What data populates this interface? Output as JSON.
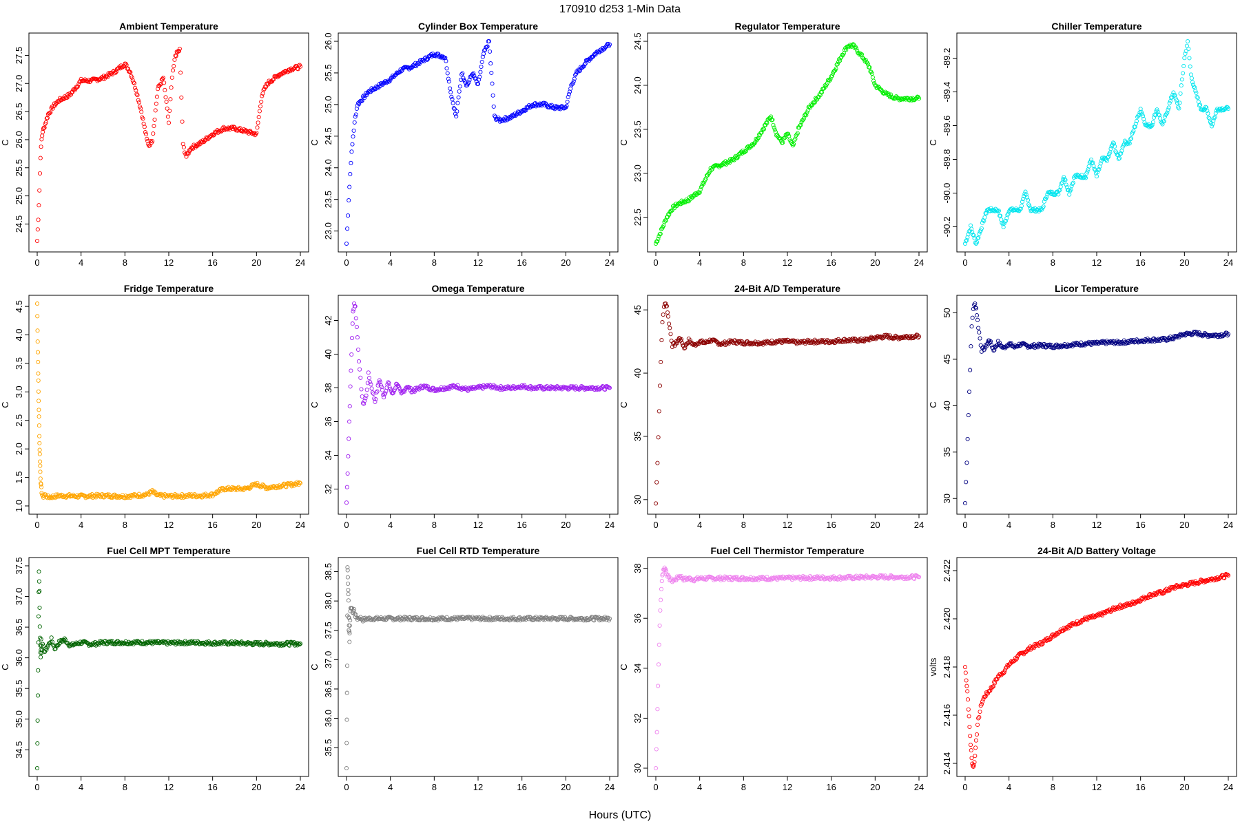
{
  "page_title": "170910    d253    1-Min Data",
  "common_xlabel": "Hours (UTC)",
  "chart_data": [
    {
      "type": "scatter",
      "title": "Ambient Temperature",
      "ylabel": "C",
      "xlabel": "",
      "color": "#ff0000",
      "xlim": [
        0,
        24
      ],
      "ylim": [
        24.15,
        27.75
      ],
      "xticks": [
        0,
        4,
        8,
        12,
        16,
        20,
        24
      ],
      "yticks": [
        24.5,
        25.0,
        25.5,
        26.0,
        26.5,
        27.0,
        27.5
      ],
      "ytick_labels": [
        "24.5",
        "25.0",
        "25.5",
        "26.0",
        "26.5",
        "27.0",
        "27.5"
      ],
      "x": [
        0,
        0.1,
        0.2,
        0.3,
        0.4,
        0.5,
        0.6,
        1,
        1.5,
        2,
        3,
        4,
        5,
        6,
        7,
        8,
        8.5,
        9,
        9.5,
        10,
        10.2,
        10.5,
        11,
        11.5,
        12,
        12.3,
        12.6,
        13,
        13.3,
        13.6,
        14,
        15,
        16,
        17,
        18,
        19,
        20,
        20.5,
        21,
        22,
        23,
        24
      ],
      "y": [
        24.2,
        24.6,
        25.1,
        25.7,
        26.0,
        26.15,
        26.2,
        26.45,
        26.6,
        26.7,
        26.8,
        27.05,
        27.05,
        27.1,
        27.2,
        27.35,
        27.2,
        26.9,
        26.5,
        26.0,
        25.9,
        26.0,
        26.9,
        27.1,
        26.3,
        27.1,
        27.5,
        27.6,
        25.9,
        25.7,
        25.85,
        25.95,
        26.1,
        26.2,
        26.2,
        26.15,
        26.1,
        26.8,
        27.0,
        27.15,
        27.25,
        27.3
      ]
    },
    {
      "type": "scatter",
      "title": "Cylinder Box Temperature",
      "ylabel": "C",
      "xlabel": "",
      "color": "#0000ff",
      "xlim": [
        0,
        24
      ],
      "ylim": [
        22.8,
        26.0
      ],
      "xticks": [
        0,
        4,
        8,
        12,
        16,
        20,
        24
      ],
      "yticks": [
        23.0,
        23.5,
        24.0,
        24.5,
        25.0,
        25.5,
        26.0
      ],
      "ytick_labels": [
        "23.0",
        "23.5",
        "24.0",
        "24.5",
        "25.0",
        "25.5",
        "26.0"
      ],
      "x": [
        0,
        0.2,
        0.4,
        0.6,
        0.8,
        1,
        1.5,
        2,
        3,
        4,
        5,
        6,
        7,
        8,
        9,
        9.5,
        10,
        10.5,
        11,
        11.5,
        12,
        12.5,
        13,
        13.5,
        14,
        15,
        16,
        17,
        18,
        19,
        20,
        20.5,
        21,
        22,
        23,
        24
      ],
      "y": [
        22.8,
        23.5,
        24.1,
        24.5,
        24.8,
        25.0,
        25.1,
        25.2,
        25.3,
        25.4,
        25.55,
        25.6,
        25.7,
        25.8,
        25.75,
        25.2,
        24.8,
        25.5,
        25.3,
        25.5,
        25.3,
        25.8,
        26.0,
        24.8,
        24.75,
        24.8,
        24.9,
        25.0,
        25.0,
        24.95,
        24.95,
        25.3,
        25.5,
        25.7,
        25.85,
        25.95
      ]
    },
    {
      "type": "scatter",
      "title": "Regulator Temperature",
      "ylabel": "C",
      "xlabel": "",
      "color": "#00ee00",
      "xlim": [
        0,
        24
      ],
      "ylim": [
        22.2,
        24.5
      ],
      "xticks": [
        0,
        4,
        8,
        12,
        16,
        20,
        24
      ],
      "yticks": [
        22.5,
        23.0,
        23.5,
        24.0,
        24.5
      ],
      "ytick_labels": [
        "22.5",
        "23.0",
        "23.5",
        "24.0",
        "24.5"
      ],
      "x": [
        0,
        0.5,
        1,
        1.5,
        2,
        3,
        4,
        5,
        6,
        7,
        8,
        9,
        10,
        10.5,
        11,
        11.5,
        12,
        12.5,
        13,
        14,
        15,
        16,
        17,
        17.5,
        18,
        19,
        19.5,
        20,
        21,
        22,
        23,
        24
      ],
      "y": [
        22.2,
        22.35,
        22.5,
        22.6,
        22.65,
        22.7,
        22.8,
        23.05,
        23.1,
        23.15,
        23.25,
        23.35,
        23.55,
        23.65,
        23.45,
        23.35,
        23.45,
        23.3,
        23.5,
        23.75,
        23.9,
        24.1,
        24.35,
        24.45,
        24.45,
        24.3,
        24.2,
        24.0,
        23.9,
        23.85,
        23.85,
        23.85
      ]
    },
    {
      "type": "scatter",
      "title": "Chiller Temperature",
      "ylabel": "C",
      "xlabel": "",
      "color": "#00e5ee",
      "xlim": [
        0,
        24
      ],
      "ylim": [
        -90.3,
        -89.1
      ],
      "xticks": [
        0,
        4,
        8,
        12,
        16,
        20,
        24
      ],
      "yticks": [
        -90.2,
        -90.0,
        -89.8,
        -89.6,
        -89.4,
        -89.2
      ],
      "ytick_labels": [
        "-90.2",
        "-90.0",
        "-89.8",
        "-89.6",
        "-89.4",
        "-89.2"
      ],
      "x": [
        0,
        0.5,
        1,
        1.5,
        2,
        2.5,
        3,
        3.5,
        4,
        4.5,
        5,
        5.5,
        6,
        6.5,
        7,
        7.5,
        8,
        8.5,
        9,
        9.5,
        10,
        10.5,
        11,
        11.5,
        12,
        12.5,
        13,
        13.5,
        14,
        14.5,
        15,
        15.5,
        16,
        16.5,
        17,
        17.5,
        18,
        18.5,
        19,
        19.5,
        20,
        20.3,
        20.6,
        21,
        21.5,
        22,
        22.5,
        23,
        23.5,
        24
      ],
      "y": [
        -90.3,
        -90.2,
        -90.3,
        -90.2,
        -90.1,
        -90.1,
        -90.1,
        -90.2,
        -90.1,
        -90.1,
        -90.1,
        -90.0,
        -90.1,
        -90.1,
        -90.1,
        -90.0,
        -90.0,
        -90.0,
        -89.9,
        -90.0,
        -89.9,
        -89.9,
        -89.9,
        -89.8,
        -89.9,
        -89.8,
        -89.8,
        -89.7,
        -89.8,
        -89.7,
        -89.7,
        -89.6,
        -89.5,
        -89.6,
        -89.6,
        -89.5,
        -89.6,
        -89.5,
        -89.4,
        -89.5,
        -89.2,
        -89.1,
        -89.3,
        -89.4,
        -89.5,
        -89.5,
        -89.6,
        -89.5,
        -89.5,
        -89.5
      ]
    },
    {
      "type": "scatter",
      "title": "Fridge Temperature",
      "ylabel": "C",
      "xlabel": "",
      "color": "#ffa500",
      "xlim": [
        0,
        24
      ],
      "ylim": [
        1.0,
        4.55
      ],
      "xticks": [
        0,
        4,
        8,
        12,
        16,
        20,
        24
      ],
      "yticks": [
        1.0,
        1.5,
        2.0,
        2.5,
        3.0,
        3.5,
        4.0,
        4.5
      ],
      "ytick_labels": [
        "1.0",
        "1.5",
        "2.0",
        "2.5",
        "3.0",
        "3.5",
        "4.0",
        "4.5"
      ],
      "x": [
        0,
        0.03,
        0.06,
        0.09,
        0.12,
        0.15,
        0.18,
        0.21,
        0.24,
        0.27,
        0.3,
        0.35,
        0.4,
        0.5,
        0.7,
        1,
        2,
        4,
        6,
        8,
        9,
        10,
        10.5,
        11,
        12,
        14,
        15,
        16,
        17,
        18,
        19,
        20,
        21,
        22,
        23,
        24
      ],
      "y": [
        4.55,
        4.1,
        3.7,
        3.35,
        3.0,
        2.7,
        2.4,
        2.1,
        1.9,
        1.7,
        1.5,
        1.35,
        1.25,
        1.15,
        1.2,
        1.15,
        1.18,
        1.17,
        1.18,
        1.17,
        1.18,
        1.2,
        1.25,
        1.18,
        1.17,
        1.18,
        1.18,
        1.2,
        1.3,
        1.3,
        1.3,
        1.38,
        1.32,
        1.35,
        1.37,
        1.4
      ]
    },
    {
      "type": "scatter",
      "title": "Omega Temperature",
      "ylabel": "C",
      "xlabel": "",
      "color": "#a020f0",
      "xlim": [
        0,
        24
      ],
      "ylim": [
        31,
        43
      ],
      "xticks": [
        0,
        4,
        8,
        12,
        16,
        20,
        24
      ],
      "yticks": [
        32,
        34,
        36,
        38,
        40,
        42
      ],
      "ytick_labels": [
        "32",
        "34",
        "36",
        "38",
        "40",
        "42"
      ],
      "x": [
        0,
        0.1,
        0.2,
        0.3,
        0.4,
        0.5,
        0.6,
        0.7,
        0.8,
        1.0,
        1.2,
        1.5,
        1.8,
        2.0,
        2.3,
        2.6,
        3.0,
        3.4,
        3.8,
        4.2,
        4.6,
        5.0,
        5.5,
        6,
        7,
        8,
        9,
        10,
        11,
        12,
        13,
        14,
        15,
        16,
        17,
        18,
        19,
        20,
        21,
        22,
        23,
        24
      ],
      "y": [
        31.2,
        33,
        35,
        37,
        39,
        41,
        42.5,
        43,
        42.8,
        41,
        39,
        37,
        37.5,
        38.8,
        38.0,
        37.2,
        38.5,
        37.5,
        38.3,
        37.6,
        38.3,
        37.6,
        38.1,
        37.8,
        38.1,
        37.9,
        38.0,
        38.1,
        37.9,
        38.0,
        38.1,
        38.0,
        38.0,
        38.1,
        38.0,
        38.0,
        38.0,
        38.0,
        38.0,
        38.0,
        38.0,
        38.0
      ]
    },
    {
      "type": "scatter",
      "title": "24-Bit A/D Temperature",
      "ylabel": "C",
      "xlabel": "",
      "color": "#8b0000",
      "xlim": [
        0,
        24
      ],
      "ylim": [
        29.5,
        45.5
      ],
      "xticks": [
        0,
        4,
        8,
        12,
        16,
        20,
        24
      ],
      "yticks": [
        30,
        35,
        40,
        45
      ],
      "ytick_labels": [
        "30",
        "35",
        "40",
        "45"
      ],
      "x": [
        0,
        0.15,
        0.3,
        0.45,
        0.6,
        0.75,
        0.9,
        1.0,
        1.2,
        1.5,
        1.8,
        2.2,
        2.6,
        3,
        3.5,
        4,
        4.5,
        5,
        6,
        7,
        8,
        9,
        10,
        11,
        12,
        13,
        14,
        15,
        16,
        17,
        18,
        19,
        20,
        21,
        22,
        23,
        24
      ],
      "y": [
        29.7,
        33,
        37,
        41,
        44,
        45.3,
        45.5,
        45.3,
        44,
        42.2,
        42.3,
        42.8,
        42.0,
        42.6,
        42.2,
        42.5,
        42.4,
        42.6,
        42.3,
        42.5,
        42.4,
        42.4,
        42.4,
        42.5,
        42.5,
        42.4,
        42.5,
        42.5,
        42.5,
        42.6,
        42.6,
        42.6,
        42.8,
        42.9,
        42.8,
        42.9,
        42.9
      ]
    },
    {
      "type": "scatter",
      "title": "Licor Temperature",
      "ylabel": "C",
      "xlabel": "",
      "color": "#000080",
      "xlim": [
        0,
        24
      ],
      "ylim": [
        29.2,
        51
      ],
      "xticks": [
        0,
        4,
        8,
        12,
        16,
        20,
        24
      ],
      "yticks": [
        30,
        35,
        40,
        45,
        50
      ],
      "ytick_labels": [
        "30",
        "35",
        "40",
        "45",
        "50"
      ],
      "x": [
        0,
        0.15,
        0.3,
        0.45,
        0.6,
        0.75,
        0.9,
        1.0,
        1.2,
        1.5,
        1.8,
        2.2,
        2.6,
        3,
        3.5,
        4,
        4.5,
        5,
        6,
        7,
        8,
        9,
        10,
        11,
        12,
        13,
        14,
        15,
        16,
        17,
        18,
        19,
        20,
        21,
        22,
        23,
        24
      ],
      "y": [
        29.5,
        34,
        39,
        44,
        48.5,
        50.5,
        51,
        50.5,
        48.5,
        46.0,
        46.2,
        47.1,
        46.0,
        46.8,
        46.2,
        46.7,
        46.3,
        46.6,
        46.4,
        46.5,
        46.4,
        46.5,
        46.6,
        46.7,
        46.7,
        46.8,
        46.8,
        46.9,
        47.0,
        47.1,
        47.1,
        47.3,
        47.7,
        47.8,
        47.6,
        47.6,
        47.7
      ]
    },
    {
      "type": "scatter",
      "title": "Fuel Cell MPT Temperature",
      "ylabel": "C",
      "xlabel": "",
      "color": "#006400",
      "xlim": [
        0,
        24
      ],
      "ylim": [
        34.2,
        37.5
      ],
      "xticks": [
        0,
        4,
        8,
        12,
        16,
        20,
        24
      ],
      "yticks": [
        34.5,
        35.0,
        35.5,
        36.0,
        36.5,
        37.0,
        37.5
      ],
      "ytick_labels": [
        "34.5",
        "35.0",
        "35.5",
        "36.0",
        "36.5",
        "37.0",
        "37.5"
      ],
      "x": [
        0,
        0.04,
        0.08,
        0.12,
        0.16,
        0.2,
        0.24,
        0.28,
        0.32,
        0.36,
        0.4,
        0.5,
        0.7,
        1.0,
        1.3,
        1.6,
        2.0,
        2.5,
        3,
        4,
        5,
        6,
        8,
        10,
        12,
        14,
        16,
        18,
        20,
        22,
        24
      ],
      "y": [
        34.2,
        35.0,
        35.8,
        36.7,
        37.4,
        37.1,
        36.5,
        36.2,
        36.0,
        36.3,
        36.1,
        36.2,
        36.1,
        36.2,
        36.3,
        36.15,
        36.25,
        36.3,
        36.2,
        36.25,
        36.22,
        36.25,
        36.25,
        36.25,
        36.24,
        36.25,
        36.24,
        36.24,
        36.23,
        36.23,
        36.23
      ]
    },
    {
      "type": "scatter",
      "title": "Fuel Cell RTD Temperature",
      "ylabel": "C",
      "xlabel": "",
      "color": "#7f7f7f",
      "xlim": [
        0,
        24
      ],
      "ylim": [
        35.15,
        38.6
      ],
      "xticks": [
        0,
        4,
        8,
        12,
        16,
        20,
        24
      ],
      "yticks": [
        35.5,
        36.0,
        36.5,
        37.0,
        37.5,
        38.0,
        38.5
      ],
      "ytick_labels": [
        "35.5",
        "36.0",
        "36.5",
        "37.0",
        "37.5",
        "38.0",
        "38.5"
      ],
      "x": [
        0,
        0.03,
        0.06,
        0.09,
        0.12,
        0.15,
        0.18,
        0.21,
        0.24,
        0.27,
        0.3,
        0.35,
        0.4,
        0.5,
        0.6,
        0.7,
        0.8,
        1.0,
        1.2,
        1.5,
        2,
        3,
        4,
        6,
        8,
        10,
        12,
        14,
        16,
        18,
        20,
        22,
        24
      ],
      "y": [
        35.15,
        36.0,
        36.9,
        38.6,
        38.4,
        38.2,
        38.0,
        37.5,
        37.7,
        37.3,
        37.6,
        37.8,
        37.9,
        37.85,
        37.8,
        37.85,
        37.75,
        37.7,
        37.72,
        37.68,
        37.7,
        37.7,
        37.7,
        37.7,
        37.7,
        37.7,
        37.7,
        37.7,
        37.7,
        37.7,
        37.7,
        37.7,
        37.7
      ]
    },
    {
      "type": "scatter",
      "title": "Fuel Cell Thermistor Temperature",
      "ylabel": "C",
      "xlabel": "",
      "color": "#ee82ee",
      "xlim": [
        0,
        24
      ],
      "ylim": [
        30,
        38.1
      ],
      "xticks": [
        0,
        4,
        8,
        12,
        16,
        20,
        24
      ],
      "yticks": [
        30,
        32,
        34,
        36,
        38
      ],
      "ytick_labels": [
        "30",
        "32",
        "34",
        "36",
        "38"
      ],
      "x": [
        0,
        0.1,
        0.2,
        0.3,
        0.4,
        0.5,
        0.6,
        0.7,
        0.8,
        0.9,
        1.0,
        1.2,
        1.5,
        1.8,
        2.2,
        2.6,
        3,
        3.5,
        4,
        5,
        6,
        8,
        10,
        12,
        14,
        16,
        18,
        20,
        22,
        24
      ],
      "y": [
        30.0,
        31.5,
        33.3,
        35.0,
        36.3,
        37.2,
        37.7,
        37.95,
        38.0,
        37.95,
        37.8,
        37.6,
        37.5,
        37.55,
        37.7,
        37.55,
        37.6,
        37.55,
        37.6,
        37.6,
        37.6,
        37.6,
        37.6,
        37.6,
        37.62,
        37.62,
        37.63,
        37.65,
        37.65,
        37.65
      ]
    },
    {
      "type": "scatter",
      "title": "24-Bit A/D Battery Voltage",
      "ylabel": "volts",
      "xlabel": "",
      "color": "#ff0000",
      "xlim": [
        0,
        24
      ],
      "ylim": [
        2.4138,
        2.4222
      ],
      "xticks": [
        0,
        4,
        8,
        12,
        16,
        20,
        24
      ],
      "yticks": [
        2.414,
        2.416,
        2.418,
        2.42,
        2.422
      ],
      "ytick_labels": [
        "2.414",
        "2.416",
        "2.418",
        "2.420",
        "2.422"
      ],
      "x": [
        0,
        0.1,
        0.2,
        0.3,
        0.4,
        0.5,
        0.6,
        0.7,
        0.8,
        0.9,
        1.0,
        1.2,
        1.5,
        1.8,
        2.0,
        2.5,
        3,
        3.5,
        4,
        4.5,
        5,
        6,
        7,
        8,
        9,
        10,
        11,
        12,
        13,
        14,
        15,
        16,
        17,
        18,
        19,
        20,
        21,
        22,
        23,
        24
      ],
      "y": [
        2.418,
        2.4175,
        2.417,
        2.4163,
        2.4155,
        2.4148,
        2.4142,
        2.4139,
        2.4139,
        2.4143,
        2.415,
        2.4158,
        2.4165,
        2.4168,
        2.4169,
        2.4172,
        2.4176,
        2.4178,
        2.4181,
        2.4183,
        2.4185,
        2.4188,
        2.419,
        2.4193,
        2.4196,
        2.4198,
        2.42,
        2.4201,
        2.4203,
        2.4205,
        2.4206,
        2.4208,
        2.421,
        2.4211,
        2.4213,
        2.4214,
        2.4215,
        2.4216,
        2.4217,
        2.4218
      ]
    }
  ]
}
